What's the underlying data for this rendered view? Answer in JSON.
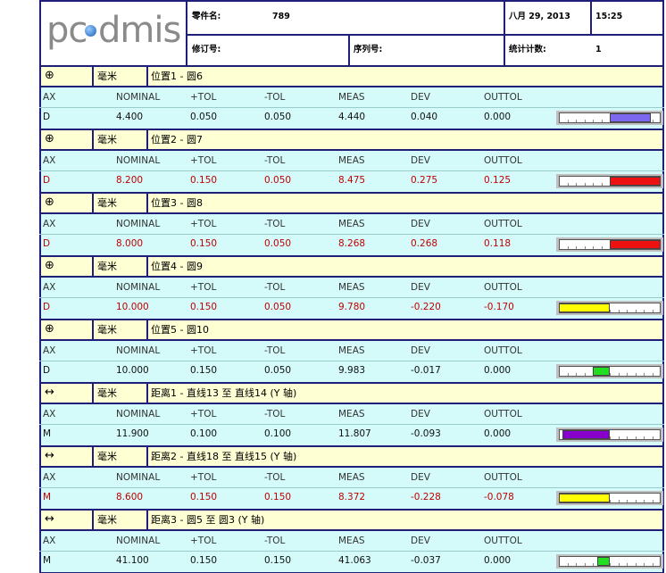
{
  "header": {
    "logo": [
      "pc",
      "dmis"
    ],
    "part_name_label": "零件名:",
    "part_name": "789",
    "date": "八月 29, 2013",
    "time": "15:25",
    "revision_label": "修订号:",
    "serial_label": "序列号:",
    "count_label": "统计计数:",
    "count": "1"
  },
  "columns": [
    "AX",
    "NOMINAL",
    "+TOL",
    "-TOL",
    "MEAS",
    "DEV",
    "OUTTOL"
  ],
  "features": [
    {
      "symbol": "⊕",
      "unit": "毫米",
      "title": "位置1 - 圆6",
      "row": [
        "D",
        "4.400",
        "0.050",
        "0.050",
        "4.440",
        "0.040",
        "0.000"
      ],
      "out_of_tolerance": false,
      "bar_color": "#7b68ee"
    },
    {
      "symbol": "⊕",
      "unit": "毫米",
      "title": "位置2 - 圆7",
      "row": [
        "D",
        "8.200",
        "0.150",
        "0.050",
        "8.475",
        "0.275",
        "0.125"
      ],
      "out_of_tolerance": true,
      "bar_color": "#ee1111"
    },
    {
      "symbol": "⊕",
      "unit": "毫米",
      "title": "位置3 - 圆8",
      "row": [
        "D",
        "8.000",
        "0.150",
        "0.050",
        "8.268",
        "0.268",
        "0.118"
      ],
      "out_of_tolerance": true,
      "bar_color": "#ee1111"
    },
    {
      "symbol": "⊕",
      "unit": "毫米",
      "title": "位置4 - 圆9",
      "row": [
        "D",
        "10.000",
        "0.150",
        "0.050",
        "9.780",
        "-0.220",
        "-0.170"
      ],
      "out_of_tolerance": true,
      "bar_color": "#ffff00"
    },
    {
      "symbol": "⊕",
      "unit": "毫米",
      "title": "位置5 - 圆10",
      "row": [
        "D",
        "10.000",
        "0.150",
        "0.050",
        "9.983",
        "-0.017",
        "0.000"
      ],
      "out_of_tolerance": false,
      "bar_color": "#22dd22"
    },
    {
      "symbol": "↔",
      "unit": "毫米",
      "title": "距离1 - 直线13 至 直线14 (Y 轴)",
      "row": [
        "M",
        "11.900",
        "0.100",
        "0.100",
        "11.807",
        "-0.093",
        "0.000"
      ],
      "out_of_tolerance": false,
      "bar_color": "#8800cc"
    },
    {
      "symbol": "↔",
      "unit": "毫米",
      "title": "距离2 - 直线18 至 直线15 (Y 轴)",
      "row": [
        "M",
        "8.600",
        "0.150",
        "0.150",
        "8.372",
        "-0.228",
        "-0.078"
      ],
      "out_of_tolerance": true,
      "bar_color": "#ffff00"
    },
    {
      "symbol": "↔",
      "unit": "毫米",
      "title": "距离3 - 圆5 至 圆3 (Y 轴)",
      "row": [
        "M",
        "41.100",
        "0.150",
        "0.150",
        "41.063",
        "-0.037",
        "0.000"
      ],
      "out_of_tolerance": false,
      "bar_color": "#22dd22"
    }
  ]
}
